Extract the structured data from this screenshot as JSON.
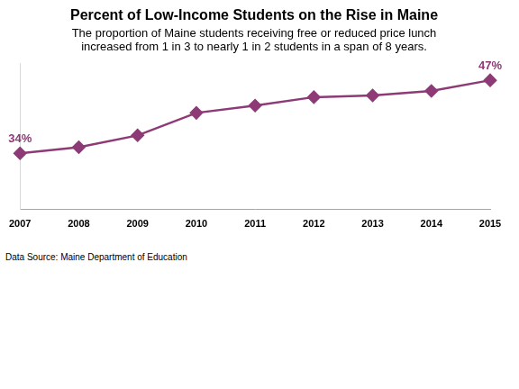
{
  "chart_data": {
    "type": "line",
    "title": "Percent of Low-Income Students on the Rise in Maine",
    "subtitle": [
      "The proportion of Maine students receiving free or reduced price lunch",
      "increased from 1 in 3 to nearly 1 in 2 students in a span of 8 years."
    ],
    "annotations": [
      "Data Source: Maine Department of Education"
    ],
    "categories": [
      "2007",
      "2008",
      "2009",
      "2010",
      "2011",
      "2012",
      "2013",
      "2014",
      "2015"
    ],
    "values": [
      34,
      35.1,
      37.2,
      41.2,
      42.5,
      44,
      44.3,
      45.1,
      47
    ],
    "value_labels": [
      "34%",
      null,
      null,
      null,
      null,
      null,
      null,
      null,
      "47%"
    ],
    "color": "#8e3a76",
    "marker": "diamond",
    "ylim": [
      24,
      50
    ],
    "grid": false,
    "tick_labels": "x"
  }
}
